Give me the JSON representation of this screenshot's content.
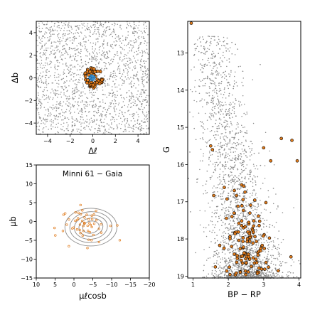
{
  "chart_data": [
    {
      "panel": "top-left",
      "type": "scatter",
      "xlabel": "Δℓ",
      "ylabel": "Δb",
      "xlim": [
        -5,
        5
      ],
      "ylim": [
        -5,
        5
      ],
      "xticks": [
        -4,
        -2,
        0,
        2,
        4
      ],
      "yticks": [
        4,
        2,
        0,
        -2,
        -4
      ],
      "x_tick_labels": [
        "−4",
        "−2",
        "0",
        "2",
        "4"
      ],
      "y_tick_labels": [
        "4",
        "2",
        "0",
        "−2",
        "−4"
      ],
      "series": [
        {
          "role": "field stars",
          "color": "#8c8c8c",
          "distribution": "uniform",
          "count": 1800
        },
        {
          "role": "cluster members",
          "color": "#e07b1c",
          "edge": "#000000",
          "center": [
            0,
            0
          ],
          "radius": 0.9,
          "count": 60
        },
        {
          "role": "cluster centre",
          "color": "#3a8fd0",
          "center": [
            0,
            0
          ],
          "radius": 0.25,
          "count": 8
        }
      ]
    },
    {
      "panel": "bottom-left",
      "type": "scatter",
      "annotation": "Minni 61  −  Gaia",
      "xlabel": "μℓcosb",
      "ylabel": "μb",
      "xlim": [
        10,
        -20
      ],
      "ylim": [
        -15,
        15
      ],
      "xticks": [
        10,
        5,
        0,
        -5,
        -10,
        -15,
        -20
      ],
      "yticks": [
        15,
        10,
        5,
        0,
        -5,
        -10,
        -15
      ],
      "x_tick_labels": [
        "10",
        "5",
        "0",
        "−5",
        "−10",
        "−15",
        "−20"
      ],
      "y_tick_labels": [
        "15",
        "10",
        "5",
        "0",
        "−5",
        "−10",
        "−15"
      ],
      "contours": {
        "center": [
          -4.5,
          -1.5
        ],
        "semi_axes": [
          [
            2.2,
            1.6
          ],
          [
            3.2,
            2.4
          ],
          [
            4.4,
            3.2
          ],
          [
            5.6,
            4.1
          ],
          [
            6.9,
            5.0
          ]
        ],
        "color": "#8c8c8c"
      },
      "series": [
        {
          "role": "members",
          "color": "#e07b1c",
          "center": [
            -4,
            -1
          ],
          "spread": [
            3.2,
            2.6
          ],
          "count": 55
        }
      ]
    },
    {
      "panel": "right",
      "type": "scatter",
      "xlabel": "BP − RP",
      "ylabel": "G",
      "xlim": [
        0.85,
        4.05
      ],
      "ylim": [
        19.05,
        12.15
      ],
      "xticks": [
        1,
        2,
        3,
        4
      ],
      "yticks": [
        13,
        14,
        15,
        16,
        17,
        18,
        19
      ],
      "x_tick_labels": [
        "1",
        "2",
        "3",
        "4"
      ],
      "y_tick_labels": [
        "13",
        "14",
        "15",
        "16",
        "17",
        "18",
        "19"
      ],
      "series": [
        {
          "role": "field stars",
          "color": "#8c8c8c",
          "count": 3500
        },
        {
          "role": "members",
          "color": "#e07b1c",
          "edge": "#000000",
          "count": 120,
          "bright_points": [
            [
              0.95,
              12.2
            ],
            [
              1.5,
              15.5
            ],
            [
              1.55,
              15.6
            ],
            [
              3.0,
              15.55
            ],
            [
              3.5,
              15.3
            ],
            [
              3.8,
              15.35
            ],
            [
              3.95,
              15.9
            ],
            [
              3.2,
              15.9
            ]
          ]
        }
      ]
    }
  ]
}
